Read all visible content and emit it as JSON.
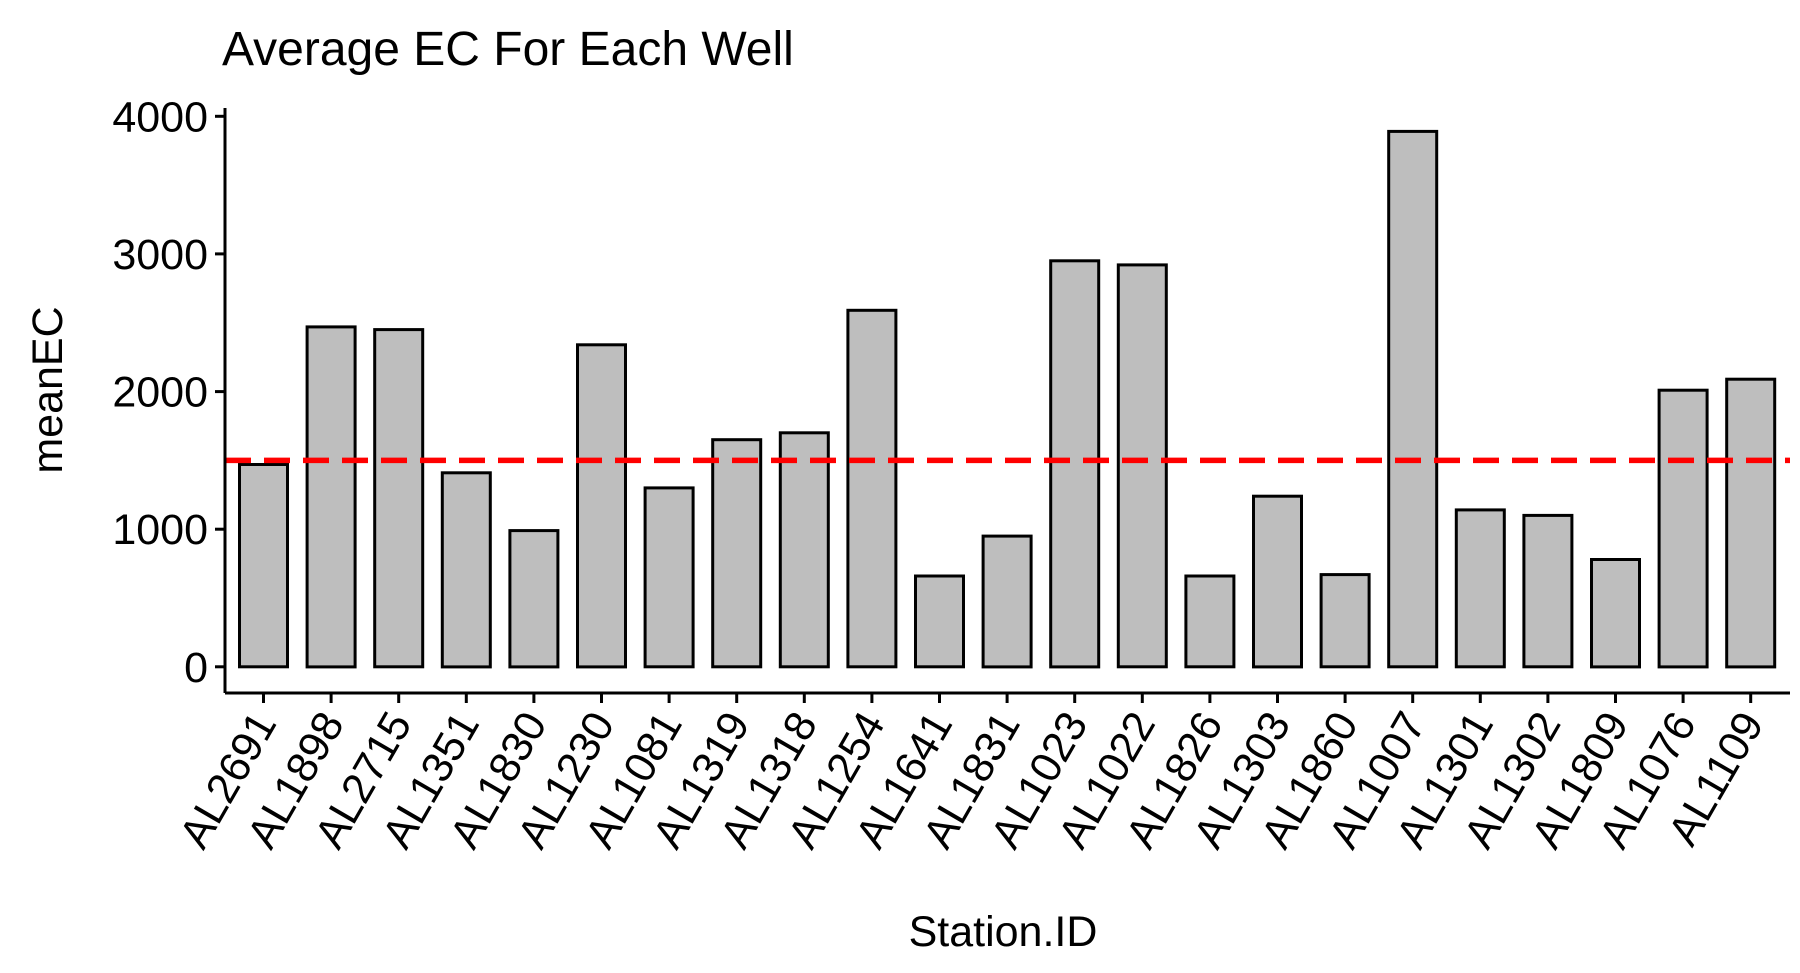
{
  "chart_data": {
    "type": "bar",
    "title": "Average EC For Each Well",
    "xlabel": "Station.ID",
    "ylabel": "meanEC",
    "categories": [
      "AL2691",
      "AL1898",
      "AL2715",
      "AL1351",
      "AL1830",
      "AL1230",
      "AL1081",
      "AL1319",
      "AL1318",
      "AL1254",
      "AL1641",
      "AL1831",
      "AL1023",
      "AL1022",
      "AL1826",
      "AL1303",
      "AL1860",
      "AL1007",
      "AL1301",
      "AL1302",
      "AL1809",
      "AL1076",
      "AL1109"
    ],
    "values": [
      1470,
      2470,
      2450,
      1410,
      990,
      2340,
      1300,
      1650,
      1700,
      2590,
      660,
      950,
      2950,
      2920,
      660,
      1240,
      670,
      3890,
      1140,
      1100,
      780,
      2010,
      2090
    ],
    "ylim": [
      -190,
      4060
    ],
    "yticks": [
      0,
      1000,
      2000,
      3000,
      4000
    ],
    "grid": false,
    "colors": {
      "bar_fill": "#bebebe",
      "bar_stroke": "#000000",
      "reference_line": "#ff0000"
    },
    "reference_line": {
      "y": 1500,
      "style": "dashed"
    }
  }
}
